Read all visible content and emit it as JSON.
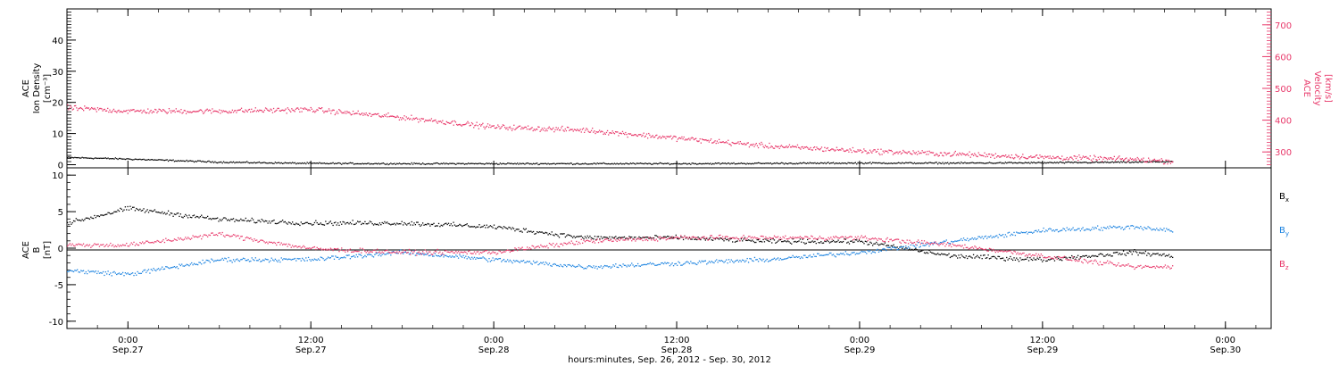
{
  "colors": {
    "black": "#000000",
    "pink": "#e8386a",
    "blue": "#1a82e0"
  },
  "chart_data": [
    {
      "type": "scatter",
      "panel": "top",
      "ylabel_left": [
        "ACE",
        "Ion Density",
        "[cm⁻³]"
      ],
      "ylabel_right": [
        "ACE",
        "Velocity",
        "[km/s]"
      ],
      "ylim_left": [
        -1,
        50
      ],
      "ylim_right": [
        250,
        750
      ],
      "yticks_left": [
        "0",
        "10",
        "20",
        "30",
        "40"
      ],
      "yticks_right": [
        "300",
        "400",
        "500",
        "600",
        "700"
      ],
      "x": [
        "2012-09-26T20:00",
        "2012-09-27T00:00",
        "2012-09-27T06:00",
        "2012-09-27T12:00",
        "2012-09-27T18:00",
        "2012-09-28T00:00",
        "2012-09-28T06:00",
        "2012-09-28T12:00",
        "2012-09-28T18:00",
        "2012-09-29T00:00",
        "2012-09-29T06:00",
        "2012-09-29T12:00",
        "2012-09-29T18:00",
        "2012-09-29T20:30"
      ],
      "series": [
        {
          "axis": "left",
          "color": "#000000",
          "values": [
            2.5,
            2.0,
            1.0,
            0.6,
            0.5,
            0.5,
            0.5,
            0.5,
            0.6,
            0.7,
            0.7,
            0.8,
            1.0,
            1.2
          ]
        },
        {
          "axis": "right",
          "color": "#e8386a",
          "values": [
            440,
            430,
            430,
            435,
            410,
            380,
            370,
            345,
            320,
            305,
            295,
            285,
            278,
            272
          ]
        }
      ]
    },
    {
      "type": "scatter",
      "panel": "bottom",
      "ylabel": [
        "ACE",
        "B",
        "[nT]"
      ],
      "ylim": [
        -11,
        11
      ],
      "yticks": [
        "10",
        "5",
        "0",
        "-5",
        "-10"
      ],
      "legend": [
        {
          "label": "Bx",
          "color": "#000000"
        },
        {
          "label": "By",
          "color": "#1a82e0"
        },
        {
          "label": "Bz",
          "color": "#e8386a"
        }
      ],
      "x": [
        "2012-09-26T20:00",
        "2012-09-27T00:00",
        "2012-09-27T06:00",
        "2012-09-27T12:00",
        "2012-09-27T18:00",
        "2012-09-28T00:00",
        "2012-09-28T06:00",
        "2012-09-28T12:00",
        "2012-09-28T18:00",
        "2012-09-29T00:00",
        "2012-09-29T06:00",
        "2012-09-29T12:00",
        "2012-09-29T18:00",
        "2012-09-29T20:30"
      ],
      "series": [
        {
          "name": "Bx",
          "color": "#000000",
          "values": [
            3.5,
            5.5,
            4.0,
            3.5,
            3.5,
            3.0,
            1.5,
            1.5,
            1.0,
            1.0,
            -1.0,
            -1.5,
            -0.5,
            -1.0
          ]
        },
        {
          "name": "By",
          "color": "#1a82e0",
          "values": [
            -3.0,
            -3.5,
            -1.5,
            -1.5,
            -0.5,
            -1.5,
            -2.5,
            -2.0,
            -1.5,
            -0.5,
            1.0,
            2.5,
            3.0,
            2.5
          ]
        },
        {
          "name": "Bz",
          "color": "#e8386a",
          "values": [
            0.5,
            0.5,
            2.0,
            0.0,
            -0.5,
            -0.5,
            1.0,
            1.5,
            1.5,
            1.5,
            0.5,
            -1.0,
            -2.5,
            -2.5
          ]
        }
      ]
    }
  ],
  "x_axis": {
    "ticks": [
      {
        "time": "0:00",
        "date": "Sep.27"
      },
      {
        "time": "12:00",
        "date": "Sep.27"
      },
      {
        "time": "0:00",
        "date": "Sep.28"
      },
      {
        "time": "12:00",
        "date": "Sep.28"
      },
      {
        "time": "0:00",
        "date": "Sep.29"
      },
      {
        "time": "12:00",
        "date": "Sep.29"
      },
      {
        "time": "0:00",
        "date": "Sep.30"
      }
    ],
    "label": "hours:minutes, Sep. 26, 2012 - Sep. 30, 2012"
  }
}
